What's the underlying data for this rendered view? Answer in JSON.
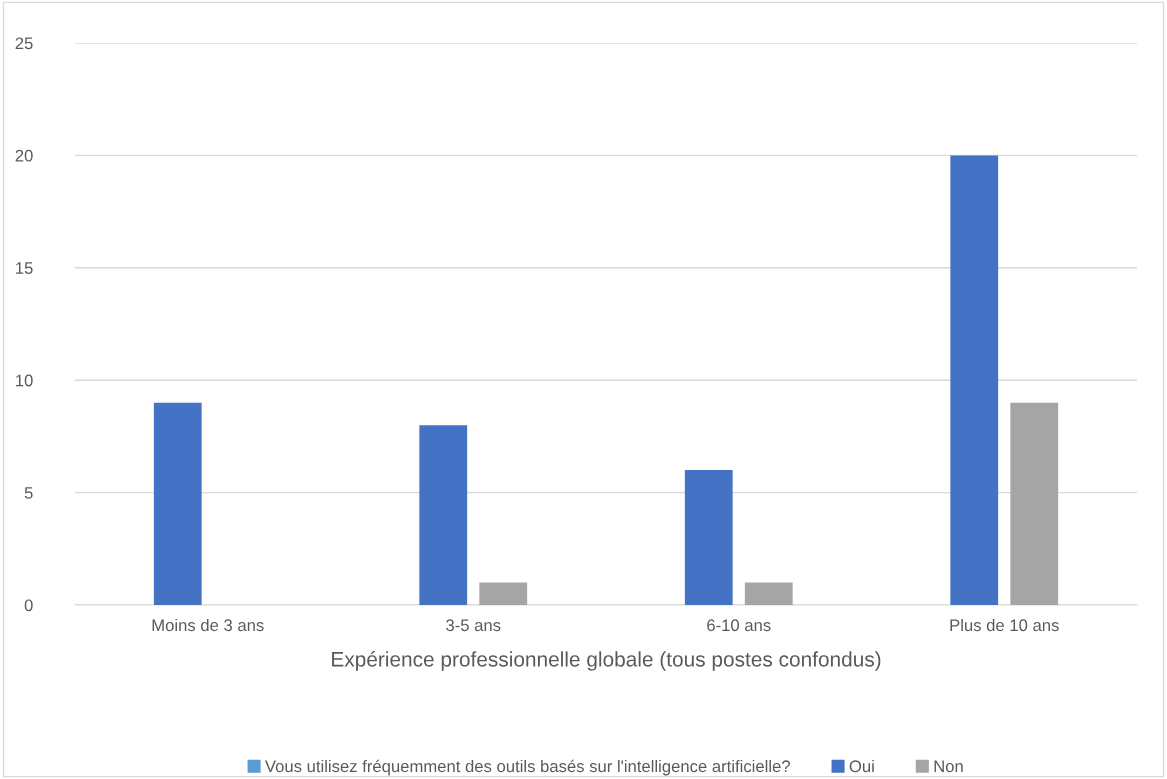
{
  "chart_data": {
    "type": "bar",
    "xlabel": "Expérience professionnelle globale (tous postes confondus)",
    "categories": [
      "Moins de 3 ans",
      "3-5 ans",
      "6-10 ans",
      "Plus de 10 ans"
    ],
    "series": [
      {
        "name": "Vous utilisez fréquemment des outils basés sur l'intelligence artificielle?",
        "color": "#5b9bd5",
        "values": [
          null,
          null,
          null,
          null
        ]
      },
      {
        "name": "Oui",
        "color": "#4472c4",
        "values": [
          9,
          8,
          6,
          20
        ]
      },
      {
        "name": "Non",
        "color": "#a5a5a5",
        "values": [
          null,
          1,
          1,
          9
        ]
      }
    ],
    "ylim": [
      0,
      25
    ],
    "yticks": [
      0,
      5,
      10,
      15,
      20,
      25
    ],
    "grid": "y",
    "legend": "bottom"
  }
}
